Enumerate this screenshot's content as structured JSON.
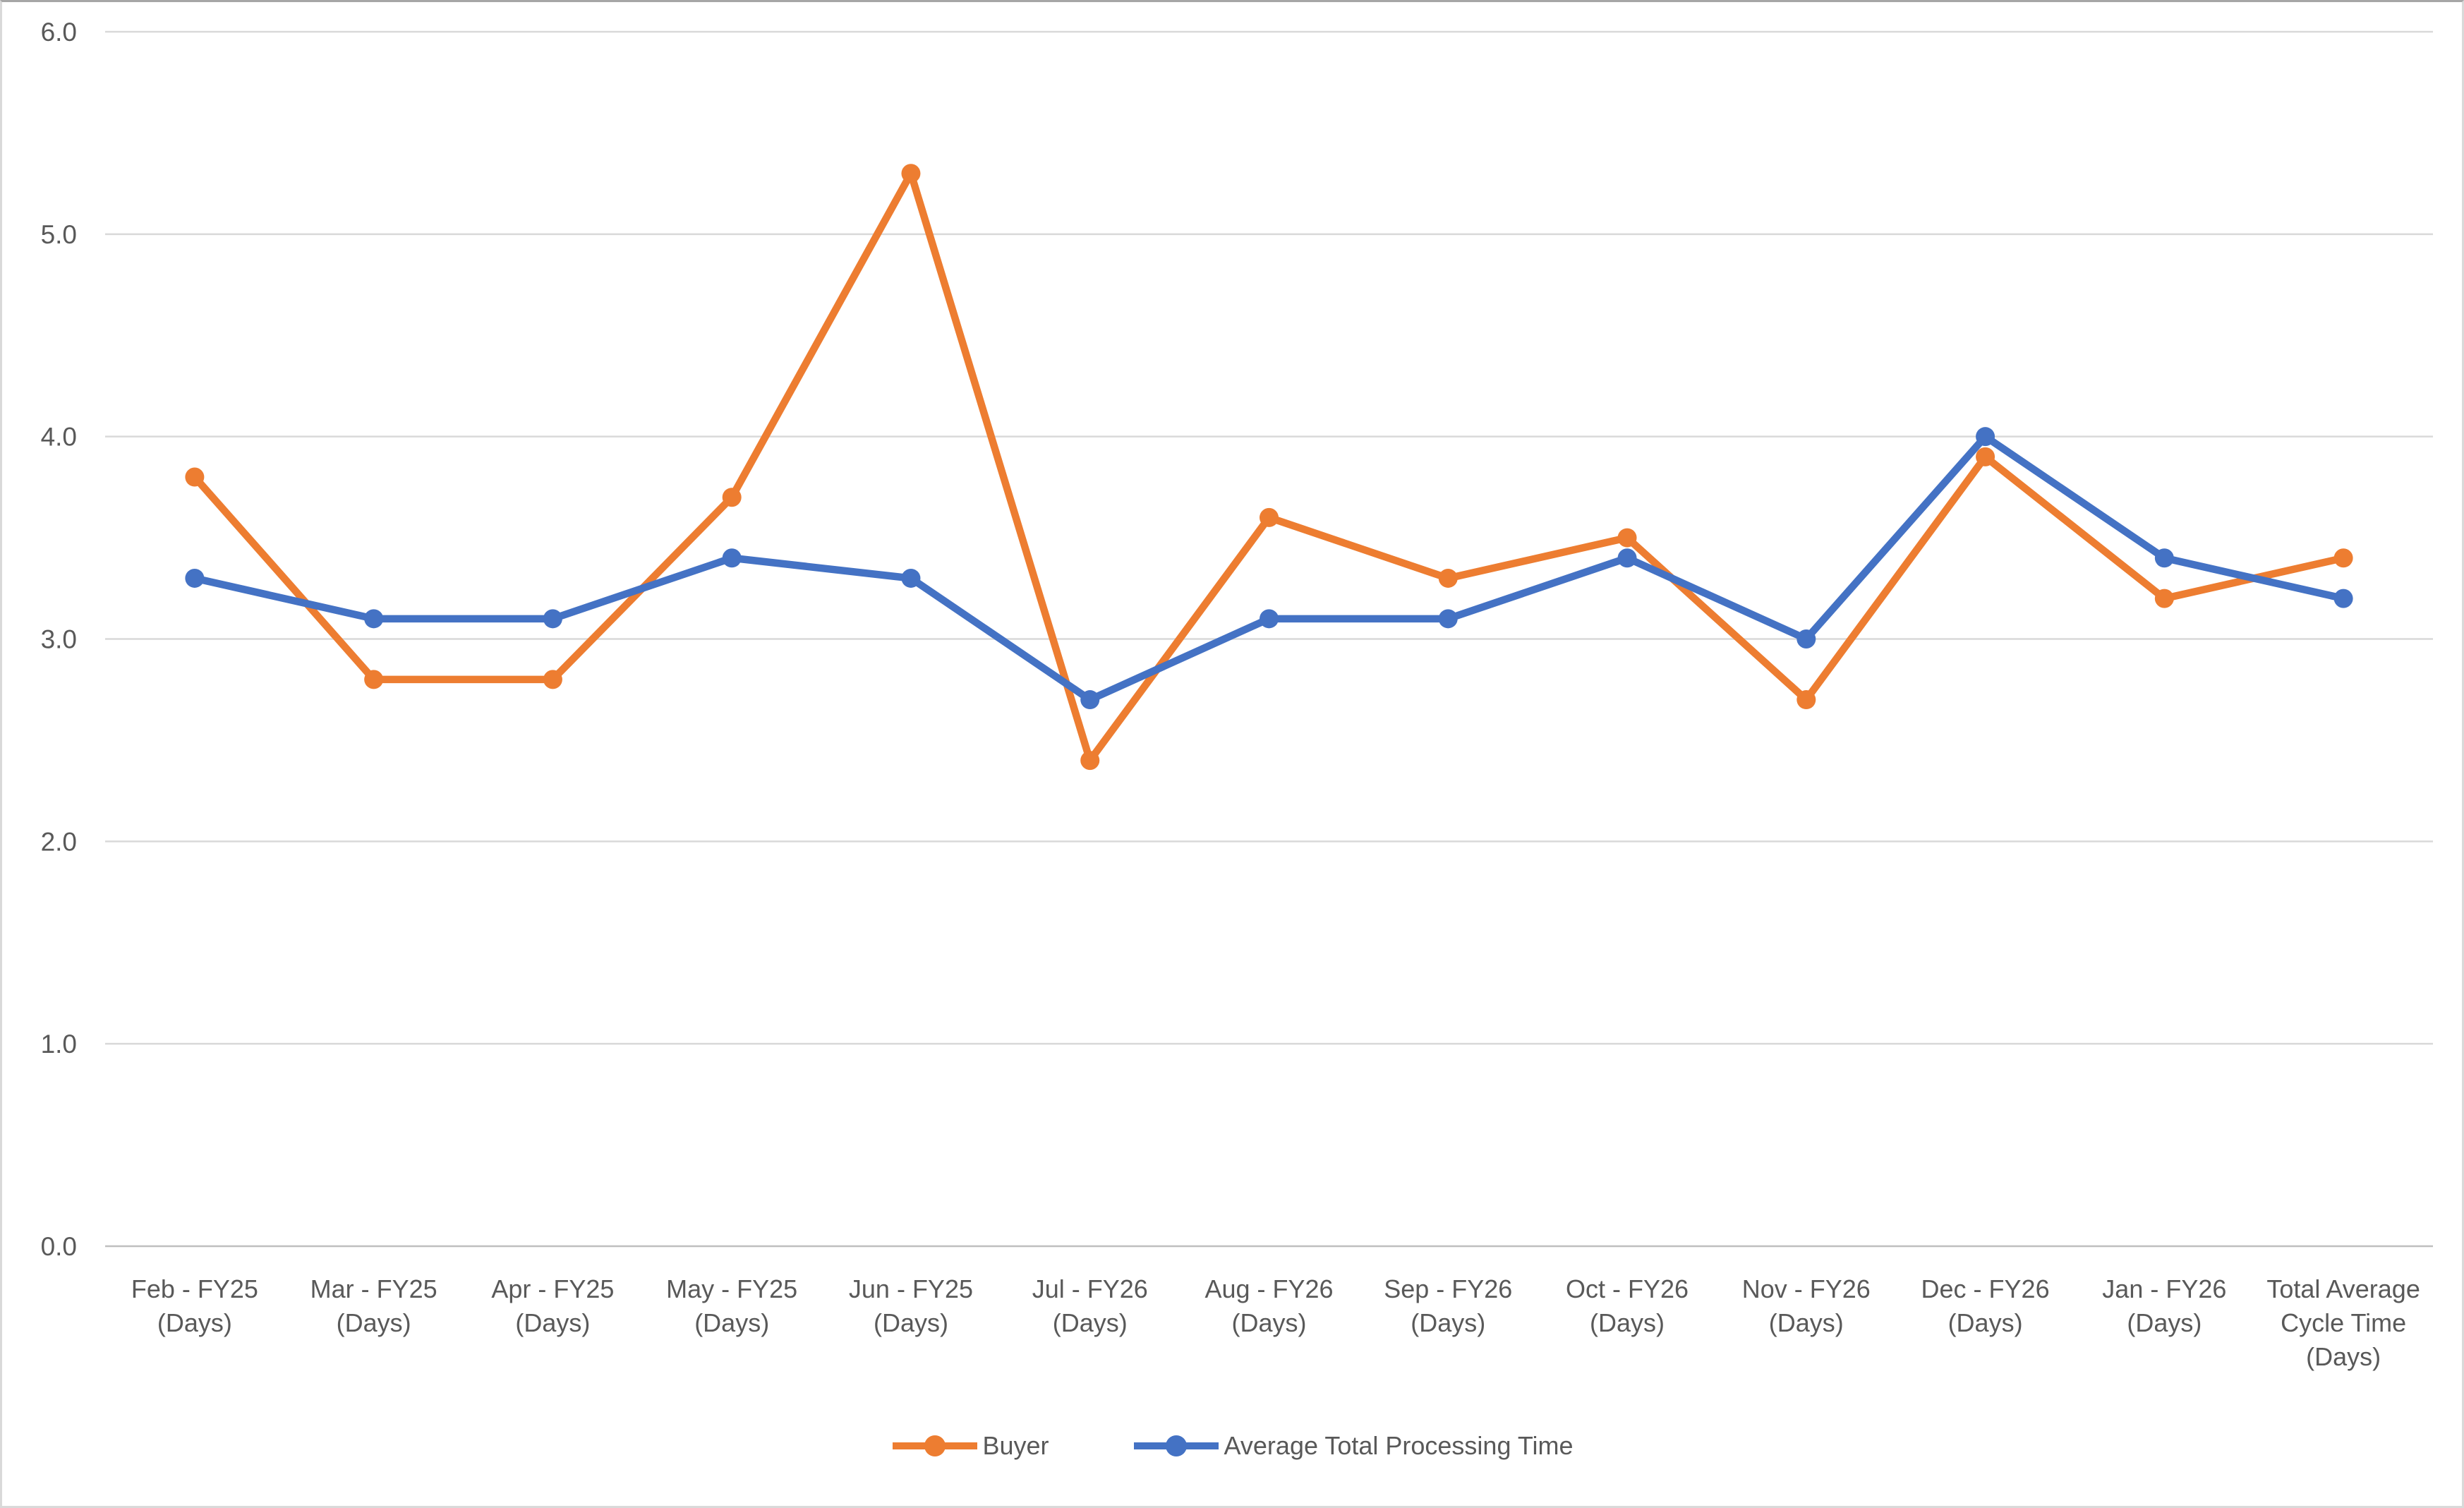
{
  "chart_data": {
    "type": "line",
    "title": "",
    "xlabel": "",
    "ylabel": "",
    "categories": [
      [
        "Feb - FY25",
        "(Days)"
      ],
      [
        "Mar - FY25",
        "(Days)"
      ],
      [
        "Apr - FY25",
        "(Days)"
      ],
      [
        "May - FY25",
        "(Days)"
      ],
      [
        "Jun - FY25",
        "(Days)"
      ],
      [
        "Jul - FY26",
        "(Days)"
      ],
      [
        "Aug - FY26",
        "(Days)"
      ],
      [
        "Sep - FY26",
        "(Days)"
      ],
      [
        "Oct - FY26",
        "(Days)"
      ],
      [
        "Nov - FY26",
        "(Days)"
      ],
      [
        "Dec - FY26",
        "(Days)"
      ],
      [
        "Jan - FY26",
        "(Days)"
      ],
      [
        "Total Average",
        "Cycle Time",
        "(Days)"
      ]
    ],
    "series": [
      {
        "name": "Buyer",
        "color": "#ED7D31",
        "values": [
          3.8,
          2.8,
          2.8,
          3.7,
          5.3,
          2.4,
          3.6,
          3.3,
          3.5,
          2.7,
          3.9,
          3.2,
          3.4
        ]
      },
      {
        "name": "Average Total Processing Time",
        "color": "#4472C4",
        "values": [
          3.3,
          3.1,
          3.1,
          3.4,
          3.3,
          2.7,
          3.1,
          3.1,
          3.4,
          3.0,
          4.0,
          3.4,
          3.2
        ]
      }
    ],
    "y_axis": {
      "min": 0,
      "max": 6,
      "step": 1,
      "tick_labels": [
        "0.0",
        "1.0",
        "2.0",
        "3.0",
        "4.0",
        "5.0",
        "6.0"
      ]
    },
    "ylim": [
      0,
      6
    ],
    "grid": true,
    "legend_position": "bottom",
    "marker": "circle",
    "colors": {
      "gridline": "#D9D9D9",
      "axis_line": "#BFBFBF",
      "tick_text": "#595959",
      "category_text": "#595959",
      "legend_text": "#595959",
      "background": "#FFFFFF"
    }
  }
}
